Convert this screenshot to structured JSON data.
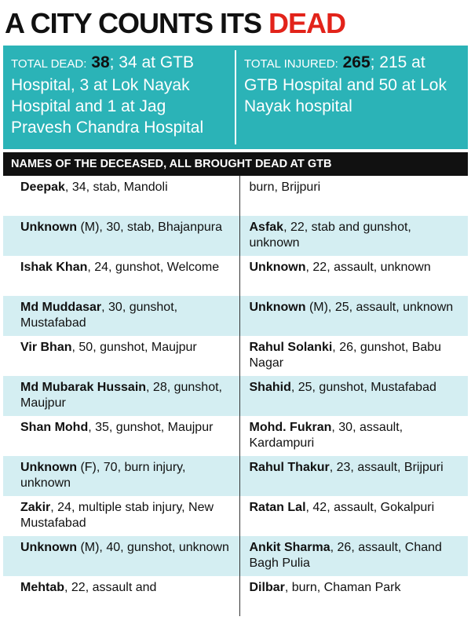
{
  "title": {
    "main": "A CITY COUNTS ITS",
    "highlight": "DEAD"
  },
  "stats": [
    {
      "label": "TOTAL DEAD:",
      "value": 38,
      "detail": "; 34 at GTB Hospital, 3 at Lok Nayak Hospital and 1 at Jag Pravesh Chandra Hospital"
    },
    {
      "label": "TOTAL INJURED:",
      "value": 265,
      "detail": "; 215 at GTB Hospital and 50 at Lok Nayak hospital"
    }
  ],
  "table": {
    "header": "NAMES OF THE DECEASED, ALL BROUGHT DEAD AT GTB",
    "rows": [
      [
        {
          "name": "Deepak",
          "text": ", 34, stab, Mandoli"
        },
        {
          "text": "burn, Brijpuri"
        }
      ],
      [
        {
          "name": "Unknown",
          "text": " (M), 30, stab, Bhajanpura"
        },
        {
          "name": "Asfak",
          "text": ", 22, stab and gunshot, unknown"
        }
      ],
      [
        {
          "name": "Ishak Khan",
          "text": ", 24, gunshot, Welcome"
        },
        {
          "name": "Unknown",
          "text": ", 22, assault, unknown"
        }
      ],
      [
        {
          "name": "Md Muddasar",
          "text": ", 30, gunshot, Mustafabad"
        },
        {
          "name": "Unknown",
          "text": " (M), 25, assault, unknown"
        }
      ],
      [
        {
          "name": "Vir Bhan",
          "text": ", 50, gunshot, Maujpur"
        },
        {
          "name": "Rahul Solanki",
          "text": ", 26, gunshot, Babu Nagar"
        }
      ],
      [
        {
          "name": "Md Mubarak Hussain",
          "text": ", 28, gunshot, Maujpur"
        },
        {
          "name": "Shahid",
          "text": ", 25, gunshot, Mustafabad"
        }
      ],
      [
        {
          "name": "Shan Mohd",
          "text": ", 35, gunshot, Maujpur"
        },
        {
          "name": "Mohd. Fukran",
          "text": ", 30, assault, Kardampuri"
        }
      ],
      [
        {
          "name": "Unknown",
          "text": " (F), 70, burn injury, unknown"
        },
        {
          "name": "Rahul Thakur",
          "text": ", 23, assault, Brijpuri"
        }
      ],
      [
        {
          "name": "Zakir",
          "text": ", 24, multiple stab injury, New Mustafabad"
        },
        {
          "name": "Ratan Lal",
          "text": ", 42, assault, Gokalpuri"
        }
      ],
      [
        {
          "name": "Unknown",
          "text": " (M), 40, gunshot, unknown"
        },
        {
          "name": "Ankit Sharma",
          "text": ", 26, assault, Chand Bagh Pulia"
        }
      ],
      [
        {
          "name": "Mehtab",
          "text": ", 22, assault and"
        },
        {
          "name": "Dilbar",
          "text": ", burn, Chaman Park"
        }
      ]
    ]
  }
}
